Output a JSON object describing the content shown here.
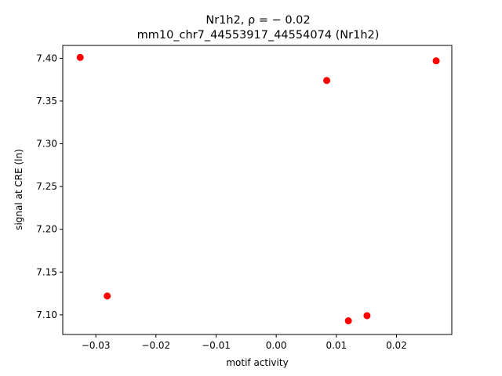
{
  "chart_data": {
    "type": "scatter",
    "title_line1": "Nr1h2, ρ = − 0.02",
    "title_line2": "mm10_chr7_44553917_44554074 (Nr1h2)",
    "xlabel": "motif activity",
    "ylabel": "signal at CRE (ln)",
    "xlim": [
      -0.0355,
      0.0292
    ],
    "ylim": [
      7.077,
      7.415
    ],
    "xticks": [
      -0.03,
      -0.02,
      -0.01,
      0.0,
      0.01,
      0.02
    ],
    "xtick_labels": [
      "−0.03",
      "−0.02",
      "−0.01",
      "0.00",
      "0.01",
      "0.02"
    ],
    "yticks": [
      7.1,
      7.15,
      7.2,
      7.25,
      7.3,
      7.35,
      7.4
    ],
    "ytick_labels": [
      "7.10",
      "7.15",
      "7.20",
      "7.25",
      "7.30",
      "7.35",
      "7.40"
    ],
    "point_color": "#ff0000",
    "grid": false,
    "points": [
      {
        "x": -0.0326,
        "y": 7.401
      },
      {
        "x": -0.0281,
        "y": 7.122
      },
      {
        "x": 0.0084,
        "y": 7.374
      },
      {
        "x": 0.012,
        "y": 7.093
      },
      {
        "x": 0.0151,
        "y": 7.099
      },
      {
        "x": 0.0266,
        "y": 7.397
      }
    ]
  }
}
